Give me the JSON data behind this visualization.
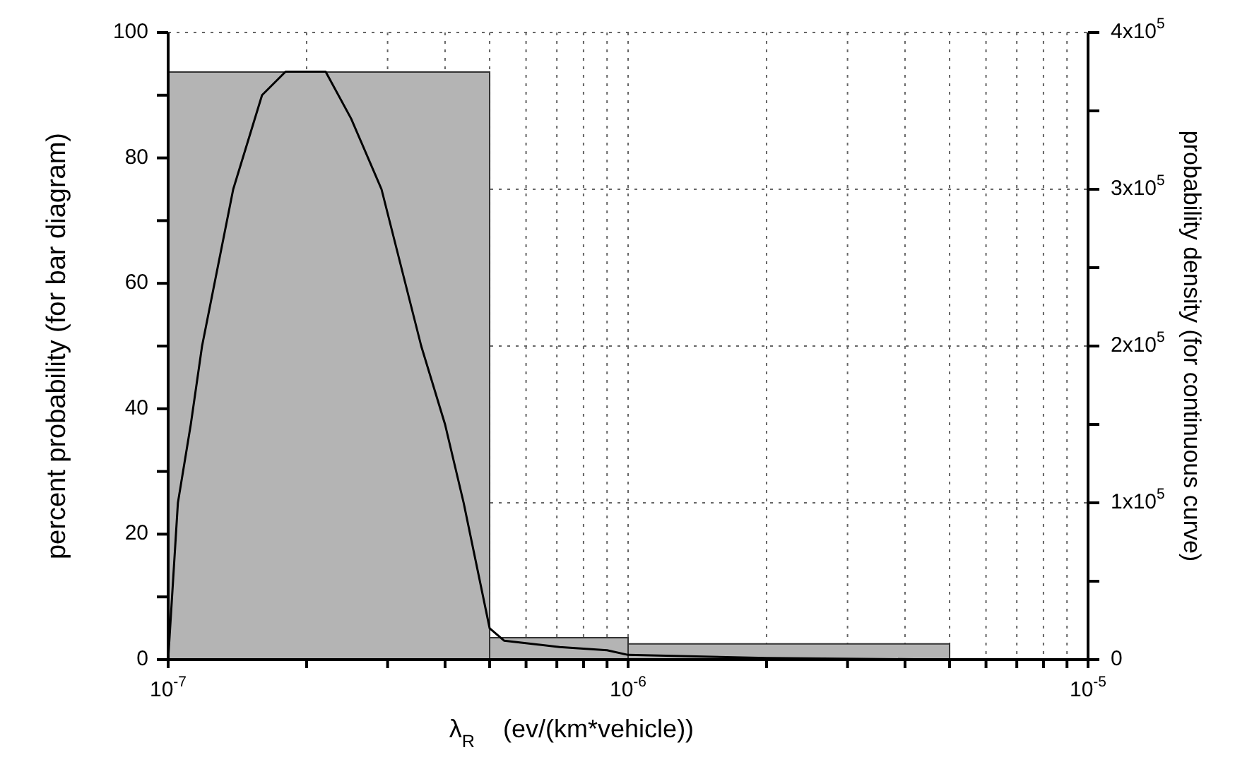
{
  "chart_data": {
    "type": "histogram",
    "xlabel": "λ$_{R}$    (ev/(km*vehicle))",
    "ylabel": "percent probability (for bar diagram)",
    "y2label": "probability density (for continuous curve)",
    "log": "x",
    "grid": true,
    "marker": "none",
    "line_style": "solid",
    "xlim": [
      1e-07,
      1e-05
    ],
    "xticks": [
      {
        "value": 1e-07,
        "label": "10$^{-7}$"
      },
      {
        "value": 2e-07,
        "label": null
      },
      {
        "value": 3e-07,
        "label": null
      },
      {
        "value": 4e-07,
        "label": null
      },
      {
        "value": 5e-07,
        "label": null
      },
      {
        "value": 6e-07,
        "label": null
      },
      {
        "value": 7e-07,
        "label": null
      },
      {
        "value": 8e-07,
        "label": null
      },
      {
        "value": 9e-07,
        "label": null
      },
      {
        "value": 1e-06,
        "label": "10$^{-6}$"
      },
      {
        "value": 2e-06,
        "label": null
      },
      {
        "value": 3e-06,
        "label": null
      },
      {
        "value": 4e-06,
        "label": null
      },
      {
        "value": 5e-06,
        "label": null
      },
      {
        "value": 6e-06,
        "label": null
      },
      {
        "value": 7e-06,
        "label": null
      },
      {
        "value": 8e-06,
        "label": null
      },
      {
        "value": 9e-06,
        "label": null
      },
      {
        "value": 1e-05,
        "label": "10$^{-5}$"
      }
    ],
    "ylim": [
      0,
      100
    ],
    "yticks": [
      0,
      {
        "value": 10,
        "label": null
      },
      20,
      {
        "value": 30,
        "label": null
      },
      40,
      {
        "value": 50,
        "label": null
      },
      60,
      {
        "value": 70,
        "label": null
      },
      80,
      {
        "value": 90,
        "label": null
      },
      100
    ],
    "y2lim": [
      0,
      400000
    ],
    "y2ticks": [
      {
        "value": 0,
        "label": "0"
      },
      {
        "value": 50000,
        "label": null
      },
      {
        "value": 100000,
        "label": "1x10$^{5}$"
      },
      {
        "value": 150000,
        "label": null
      },
      {
        "value": 200000,
        "label": "2x10$^{5}$"
      },
      {
        "value": 250000,
        "label": null
      },
      {
        "value": 300000,
        "label": "3x10$^{5}$"
      },
      {
        "value": 350000,
        "label": null
      },
      {
        "value": 400000,
        "label": "4x10$^{5}$"
      }
    ],
    "series": [
      {
        "color": "#b4b4b4",
        "bins": [
          1e-07,
          5e-07,
          1e-06,
          5e-06
        ],
        "values": [
          93.7,
          3.5,
          2.5
        ]
      },
      {
        "type": "line",
        "axis": "y2",
        "color": "#000000",
        "x": [
          1e-07,
          1.05e-07,
          1.12e-07,
          1.185e-07,
          1.385e-07,
          1.6e-07,
          1.8e-07,
          2e-07,
          2.2e-07,
          2.5e-07,
          2.91e-07,
          3.55e-07,
          4e-07,
          4.39e-07,
          5e-07,
          5.38e-07,
          7.1e-07,
          9e-07,
          1e-06,
          2e-06,
          5e-06
        ],
        "values": [
          0,
          100000,
          150000,
          200000,
          300000,
          360000,
          375000,
          375000,
          375000,
          345000,
          300000,
          200000,
          150000,
          100000,
          20000,
          12000,
          8000,
          6000,
          3000,
          1000,
          0
        ]
      }
    ]
  }
}
